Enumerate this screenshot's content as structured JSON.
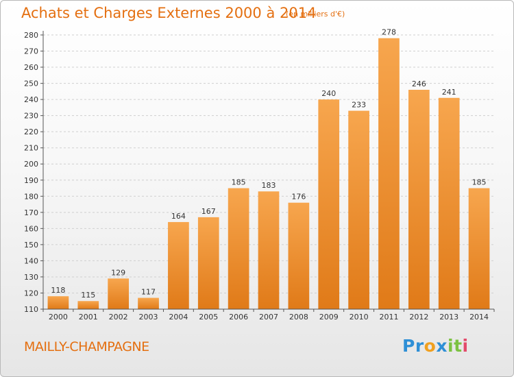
{
  "header": {
    "title": "Achats et Charges Externes 2000 à 2014",
    "subtitle": "(en milliers d'€)"
  },
  "footer": {
    "commune": "MAILLY-CHAMPAGNE",
    "logo_letters": [
      "P",
      "r",
      "o",
      "x",
      "i",
      "t",
      "i"
    ],
    "logo_colors": [
      "#2e8fd6",
      "#2e8fd6",
      "#f0a020",
      "#2e8fd6",
      "#7cc242",
      "#7cc242",
      "#e34a6a"
    ]
  },
  "colors": {
    "bar_light": "#f7a64e",
    "bar_dark": "#e07a18",
    "grid": "#cfcfcf",
    "axis": "#555555",
    "accent": "#e46f10"
  },
  "chart_data": {
    "type": "bar",
    "title": "Achats et Charges Externes 2000 à 2014",
    "subtitle": "(en milliers d'€)",
    "categories": [
      "2000",
      "2001",
      "2002",
      "2003",
      "2004",
      "2005",
      "2006",
      "2007",
      "2008",
      "2009",
      "2010",
      "2011",
      "2012",
      "2013",
      "2014"
    ],
    "values": [
      118,
      115,
      129,
      117,
      164,
      167,
      185,
      183,
      176,
      240,
      233,
      278,
      246,
      241,
      185
    ],
    "ylim": [
      110,
      280
    ],
    "yticks": [
      110,
      120,
      130,
      140,
      150,
      160,
      170,
      180,
      190,
      200,
      210,
      220,
      230,
      240,
      250,
      260,
      270,
      280
    ],
    "grid": true,
    "legend": "none",
    "data_labels": true
  }
}
